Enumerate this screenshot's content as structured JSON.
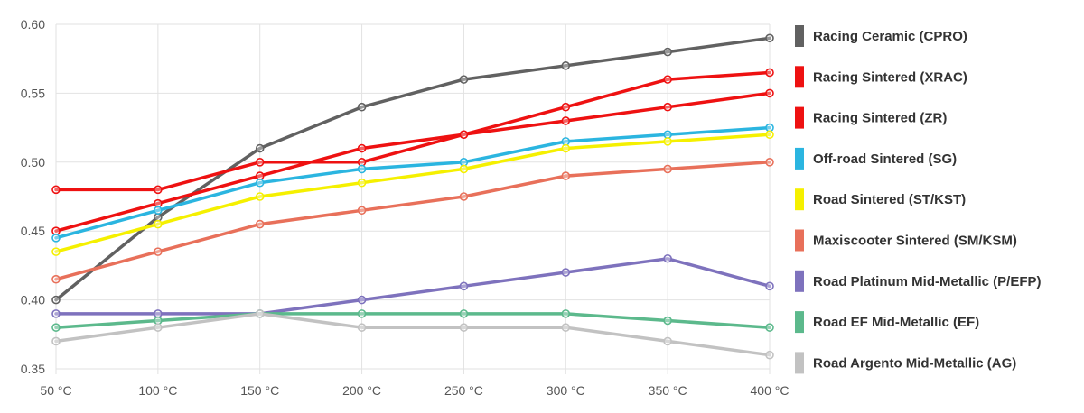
{
  "chart_data": {
    "type": "line",
    "title": "",
    "xlabel": "",
    "ylabel": "",
    "categories": [
      "50 °C",
      "100 °C",
      "150 °C",
      "200 °C",
      "250 °C",
      "300 °C",
      "350 °C",
      "400 °C"
    ],
    "ylim": [
      0.35,
      0.6
    ],
    "yticks": [
      "0.35",
      "0.40",
      "0.45",
      "0.50",
      "0.55",
      "0.60"
    ],
    "grid": true,
    "legend_position": "right",
    "series": [
      {
        "name": "Racing Ceramic (CPRO)",
        "color": "#616161",
        "values": [
          0.4,
          0.46,
          0.51,
          0.54,
          0.56,
          0.57,
          0.58,
          0.59
        ]
      },
      {
        "name": "Racing Sintered (XRAC)",
        "color": "#ee1111",
        "values": [
          0.48,
          0.48,
          0.5,
          0.5,
          0.52,
          0.54,
          0.56,
          0.565
        ]
      },
      {
        "name": "Racing Sintered (ZR)",
        "color": "#ee1111",
        "values": [
          0.45,
          0.47,
          0.49,
          0.51,
          0.52,
          0.53,
          0.54,
          0.55
        ]
      },
      {
        "name": "Off-road Sintered (SG)",
        "color": "#2bb5e0",
        "values": [
          0.445,
          0.465,
          0.485,
          0.495,
          0.5,
          0.515,
          0.52,
          0.525
        ]
      },
      {
        "name": "Road Sintered (ST/KST)",
        "color": "#f5f000",
        "values": [
          0.435,
          0.455,
          0.475,
          0.485,
          0.495,
          0.51,
          0.515,
          0.52
        ]
      },
      {
        "name": "Maxiscooter Sintered (SM/KSM)",
        "color": "#e8705a",
        "values": [
          0.415,
          0.435,
          0.455,
          0.465,
          0.475,
          0.49,
          0.495,
          0.5
        ]
      },
      {
        "name": "Road Platinum Mid-Metallic (P/EFP)",
        "color": "#7e72bd",
        "values": [
          0.39,
          0.39,
          0.39,
          0.4,
          0.41,
          0.42,
          0.43,
          0.41
        ]
      },
      {
        "name": "Road EF Mid-Metallic (EF)",
        "color": "#5cb98c",
        "values": [
          0.38,
          0.385,
          0.39,
          0.39,
          0.39,
          0.39,
          0.385,
          0.38
        ]
      },
      {
        "name": "Road Argento Mid-Metallic (AG)",
        "color": "#c2c2c2",
        "values": [
          0.37,
          0.38,
          0.39,
          0.38,
          0.38,
          0.38,
          0.37,
          0.36
        ]
      }
    ]
  }
}
